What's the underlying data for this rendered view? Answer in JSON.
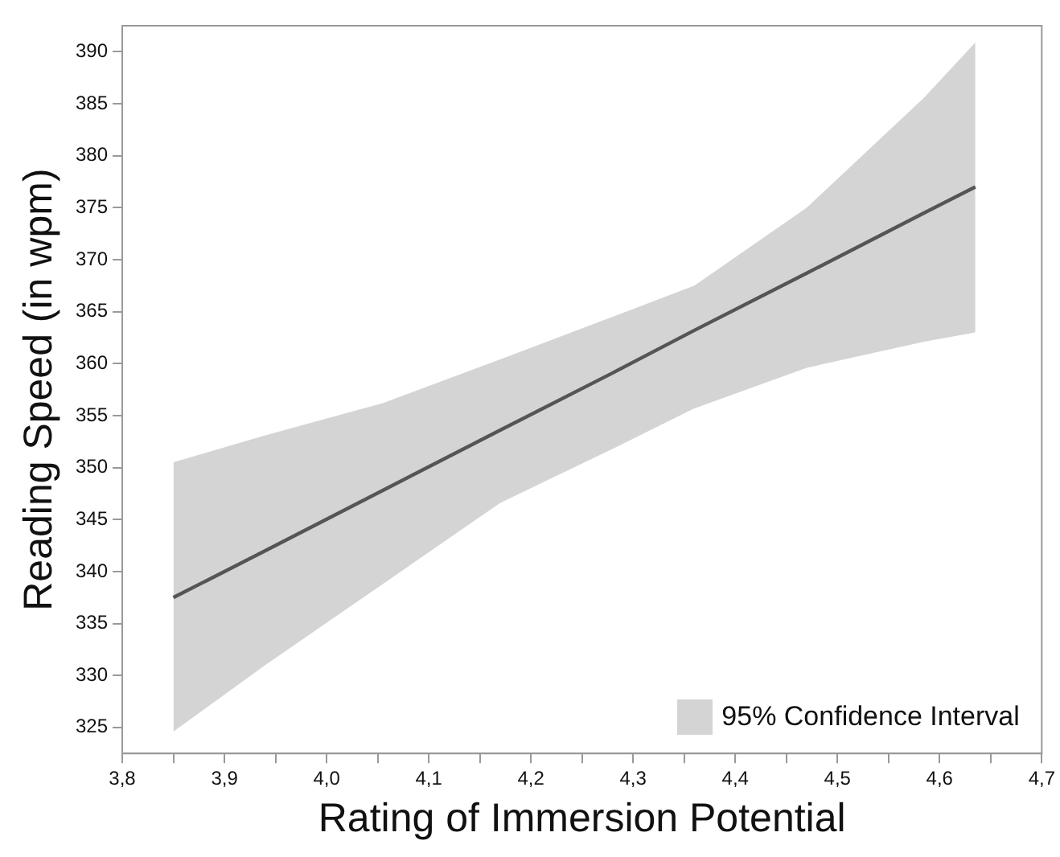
{
  "chart_data": {
    "type": "line",
    "xlabel": "Rating of Immersion Potential",
    "ylabel": "Reading Speed (in wpm)",
    "xlim": [
      3.8,
      4.7
    ],
    "ylim": [
      322.5,
      392.5
    ],
    "xticks": [
      {
        "value": 3.8,
        "label": "3,8"
      },
      {
        "value": 3.85,
        "label": null
      },
      {
        "value": 3.9,
        "label": "3,9"
      },
      {
        "value": 3.95,
        "label": null
      },
      {
        "value": 4.0,
        "label": "4,0"
      },
      {
        "value": 4.05,
        "label": null
      },
      {
        "value": 4.1,
        "label": "4,1"
      },
      {
        "value": 4.15,
        "label": null
      },
      {
        "value": 4.2,
        "label": "4,2"
      },
      {
        "value": 4.25,
        "label": null
      },
      {
        "value": 4.3,
        "label": "4,3"
      },
      {
        "value": 4.35,
        "label": null
      },
      {
        "value": 4.4,
        "label": "4,4"
      },
      {
        "value": 4.45,
        "label": null
      },
      {
        "value": 4.5,
        "label": "4,5"
      },
      {
        "value": 4.55,
        "label": null
      },
      {
        "value": 4.6,
        "label": "4,6"
      },
      {
        "value": 4.65,
        "label": null
      },
      {
        "value": 4.7,
        "label": "4,7"
      }
    ],
    "yticks": [
      325,
      330,
      335,
      340,
      345,
      350,
      355,
      360,
      365,
      370,
      375,
      380,
      385,
      390
    ],
    "series": [
      {
        "name": "95% Confidence Interval",
        "color": "#555555",
        "x": [
          3.85,
          3.94,
          4.055,
          4.17,
          4.28,
          4.36,
          4.47,
          4.585,
          4.635
        ],
        "values": [
          337.5,
          342.0,
          347.8,
          353.6,
          359.1,
          363.2,
          368.7,
          374.5,
          377.0
        ],
        "lower": [
          324.6,
          331.0,
          338.8,
          346.6,
          351.8,
          355.7,
          359.6,
          362.1,
          363.0
        ],
        "upper": [
          350.5,
          353.1,
          356.2,
          360.4,
          364.5,
          367.5,
          375.0,
          385.6,
          390.9
        ]
      }
    ],
    "legend": "bottom right",
    "grid": false,
    "marker": "none",
    "line_style": "solid"
  }
}
